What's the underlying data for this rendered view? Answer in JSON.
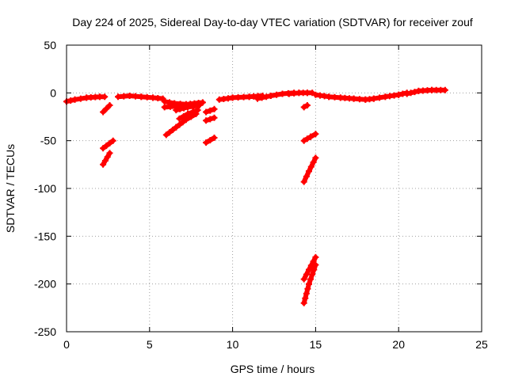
{
  "chart_data": {
    "type": "scatter",
    "title": "Day 224 of 2025, Sidereal Day-to-day VTEC variation (SDTVAR) for receiver zouf",
    "xlabel": "GPS time / hours",
    "ylabel": "SDTVAR / TECUs",
    "xlim": [
      0,
      25
    ],
    "ylim": [
      -250,
      50
    ],
    "xticks": [
      0,
      5,
      10,
      15,
      20,
      25
    ],
    "yticks": [
      -250,
      -200,
      -150,
      -100,
      -50,
      0,
      50
    ],
    "grid": true,
    "series": [
      {
        "name": "SDTVAR",
        "color": "#ff0000",
        "arcs": [
          [
            [
              0.0,
              -9
            ],
            [
              0.5,
              -7
            ],
            [
              1.2,
              -5
            ],
            [
              2.0,
              -4
            ],
            [
              2.3,
              -4
            ]
          ],
          [
            [
              2.2,
              -20
            ],
            [
              2.6,
              -13
            ]
          ],
          [
            [
              2.2,
              -58
            ],
            [
              2.8,
              -50
            ]
          ],
          [
            [
              2.2,
              -75
            ],
            [
              2.6,
              -63
            ]
          ],
          [
            [
              3.1,
              -4
            ],
            [
              3.8,
              -3
            ],
            [
              4.5,
              -4
            ],
            [
              5.2,
              -5
            ],
            [
              5.8,
              -6
            ]
          ],
          [
            [
              5.9,
              -9
            ],
            [
              6.5,
              -11
            ],
            [
              7.2,
              -12
            ],
            [
              8.2,
              -10
            ]
          ],
          [
            [
              5.9,
              -15
            ],
            [
              6.6,
              -14
            ],
            [
              7.5,
              -13
            ]
          ],
          [
            [
              6.0,
              -44
            ],
            [
              6.6,
              -36
            ],
            [
              7.2,
              -28
            ],
            [
              7.8,
              -22
            ]
          ],
          [
            [
              6.8,
              -27
            ],
            [
              7.3,
              -22
            ],
            [
              7.9,
              -18
            ]
          ],
          [
            [
              6.6,
              -18
            ],
            [
              7.3,
              -15
            ],
            [
              8.0,
              -13
            ]
          ],
          [
            [
              8.4,
              -20
            ],
            [
              8.9,
              -17
            ]
          ],
          [
            [
              8.4,
              -29
            ],
            [
              8.9,
              -26
            ]
          ],
          [
            [
              8.4,
              -52
            ],
            [
              8.9,
              -47
            ]
          ],
          [
            [
              9.2,
              -7
            ],
            [
              10.0,
              -5
            ],
            [
              11.0,
              -4
            ],
            [
              11.8,
              -3
            ]
          ],
          [
            [
              11.5,
              -6
            ],
            [
              12.3,
              -3
            ],
            [
              13.0,
              -1
            ],
            [
              13.7,
              0
            ]
          ],
          [
            [
              13.4,
              -1
            ],
            [
              14.0,
              0
            ],
            [
              14.5,
              0
            ],
            [
              14.8,
              0
            ]
          ],
          [
            [
              14.3,
              -15
            ],
            [
              14.5,
              -13
            ]
          ],
          [
            [
              14.3,
              -50
            ],
            [
              14.7,
              -46
            ],
            [
              15.0,
              -43
            ]
          ],
          [
            [
              14.3,
              -93
            ],
            [
              14.6,
              -82
            ],
            [
              15.0,
              -68
            ]
          ],
          [
            [
              14.3,
              -195
            ],
            [
              14.6,
              -185
            ],
            [
              15.0,
              -172
            ]
          ],
          [
            [
              14.3,
              -220
            ],
            [
              14.6,
              -200
            ],
            [
              15.0,
              -180
            ]
          ],
          [
            [
              15.0,
              -2
            ],
            [
              15.8,
              -4
            ],
            [
              16.5,
              -5
            ],
            [
              17.3,
              -6
            ],
            [
              18.0,
              -7
            ],
            [
              18.5,
              -6
            ]
          ],
          [
            [
              18.5,
              -6
            ],
            [
              19.2,
              -4
            ],
            [
              20.0,
              -2
            ],
            [
              20.5,
              0
            ]
          ],
          [
            [
              20.5,
              -1
            ],
            [
              21.2,
              2
            ],
            [
              22.0,
              3
            ],
            [
              22.8,
              3
            ]
          ]
        ]
      }
    ]
  }
}
